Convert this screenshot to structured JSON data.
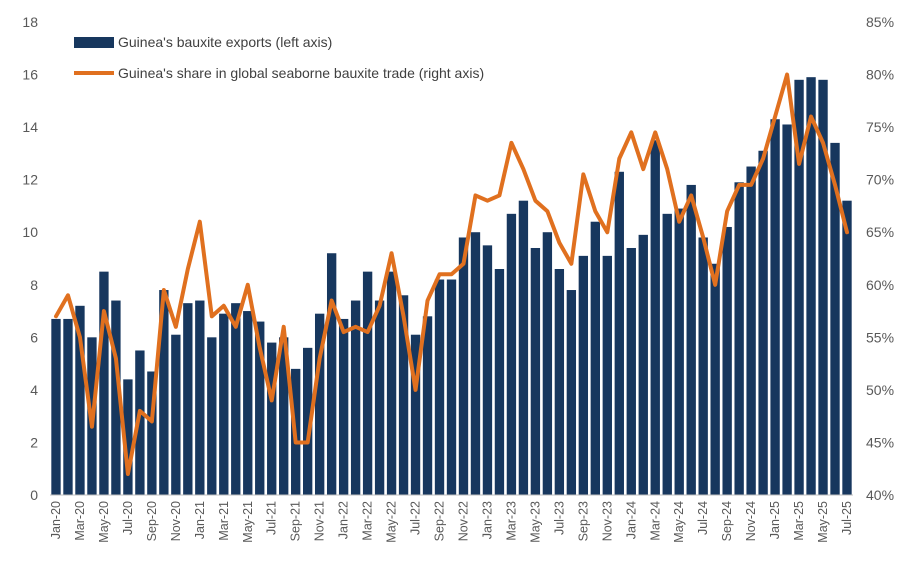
{
  "chart_data": {
    "type": "bar+line",
    "categories": [
      "Jan-20",
      "Feb-20",
      "Mar-20",
      "Apr-20",
      "May-20",
      "Jun-20",
      "Jul-20",
      "Aug-20",
      "Sep-20",
      "Oct-20",
      "Nov-20",
      "Dec-20",
      "Jan-21",
      "Feb-21",
      "Mar-21",
      "Apr-21",
      "May-21",
      "Jun-21",
      "Jul-21",
      "Aug-21",
      "Sep-21",
      "Oct-21",
      "Nov-21",
      "Dec-21",
      "Jan-22",
      "Feb-22",
      "Mar-22",
      "Apr-22",
      "May-22",
      "Jun-22",
      "Jul-22",
      "Aug-22",
      "Sep-22",
      "Oct-22",
      "Nov-22",
      "Dec-22",
      "Jan-23",
      "Feb-23",
      "Mar-23",
      "Apr-23",
      "May-23",
      "Jun-23",
      "Jul-23",
      "Aug-23",
      "Sep-23",
      "Oct-23",
      "Nov-23",
      "Dec-23",
      "Jan-24",
      "Feb-24",
      "Mar-24",
      "Apr-24",
      "May-24",
      "Jun-24",
      "Jul-24",
      "Aug-24",
      "Sep-24",
      "Oct-24",
      "Nov-24",
      "Dec-24",
      "Jan-25",
      "Feb-25",
      "Mar-25",
      "Apr-25",
      "May-25",
      "Jun-25",
      "Jul-25"
    ],
    "tick_labels": [
      "Jan-20",
      "Mar-20",
      "May-20",
      "Jul-20",
      "Sep-20",
      "Nov-20",
      "Jan-21",
      "Mar-21",
      "May-21",
      "Jul-21",
      "Sep-21",
      "Nov-21",
      "Jan-22",
      "Mar-22",
      "May-22",
      "Jul-22",
      "Sep-22",
      "Nov-22",
      "Jan-23",
      "Mar-23",
      "May-23",
      "Jul-23",
      "Sep-23",
      "Nov-23",
      "Jan-24",
      "Mar-24",
      "May-24",
      "Jul-24",
      "Sep-24",
      "Nov-24",
      "Jan-25",
      "Mar-25",
      "May-25",
      "Jul-25"
    ],
    "series": [
      {
        "name": "Guinea's bauxite exports (left axis)",
        "type": "bar",
        "axis": "left",
        "color": "#17375e",
        "values": [
          6.7,
          6.7,
          7.2,
          6.0,
          8.5,
          7.4,
          4.4,
          5.5,
          4.7,
          7.8,
          6.1,
          7.3,
          7.4,
          6.0,
          6.9,
          7.3,
          7.0,
          6.6,
          5.8,
          6.0,
          4.8,
          5.6,
          6.9,
          9.2,
          6.7,
          7.4,
          8.5,
          7.4,
          8.5,
          7.6,
          6.1,
          6.8,
          8.2,
          8.2,
          9.8,
          10.0,
          9.5,
          8.6,
          10.7,
          11.2,
          9.4,
          10.0,
          8.6,
          7.8,
          9.1,
          10.4,
          9.1,
          12.3,
          9.4,
          9.9,
          13.5,
          10.7,
          10.9,
          11.8,
          9.8,
          8.8,
          10.2,
          11.9,
          12.5,
          13.1,
          14.3,
          14.1,
          15.8,
          15.9,
          15.8,
          13.4,
          11.2
        ]
      },
      {
        "name": "Guinea's share in global seaborne bauxite trade (right axis)",
        "type": "line",
        "axis": "right",
        "color": "#e0701f",
        "values": [
          57,
          59,
          55,
          46.5,
          57.5,
          53,
          42,
          48,
          47,
          59.5,
          56,
          61.5,
          66,
          57,
          58,
          56,
          60,
          54,
          49,
          56,
          45,
          45,
          53,
          58.5,
          55.5,
          56,
          55.5,
          58,
          63,
          57,
          50,
          58.5,
          61,
          61,
          62,
          68.5,
          68,
          68.5,
          73.5,
          71,
          68,
          67,
          64,
          62,
          70.5,
          67,
          65,
          72,
          74.5,
          71,
          74.5,
          71,
          66,
          68.5,
          64.5,
          60,
          67,
          69.5,
          69.5,
          72,
          76,
          80,
          71.5,
          76,
          73.5,
          69.5,
          65
        ]
      }
    ],
    "y_left": {
      "min": 0,
      "max": 18,
      "ticks": [
        0,
        2,
        4,
        6,
        8,
        10,
        12,
        14,
        16,
        18
      ],
      "tick_labels": [
        "0",
        "2",
        "4",
        "6",
        "8",
        "10",
        "12",
        "14",
        "16",
        "18"
      ]
    },
    "y_right": {
      "min": 40,
      "max": 85,
      "ticks": [
        40,
        45,
        50,
        55,
        60,
        65,
        70,
        75,
        80,
        85
      ],
      "tick_labels": [
        "40%",
        "45%",
        "50%",
        "55%",
        "60%",
        "65%",
        "70%",
        "75%",
        "80%",
        "85%"
      ]
    },
    "legend": {
      "position": "top-left",
      "entries": [
        {
          "label": "Guinea's bauxite exports (left axis)",
          "marker": "bar",
          "color": "#17375e"
        },
        {
          "label": "Guinea's share in global seaborne bauxite trade (right axis)",
          "marker": "line",
          "color": "#e0701f"
        }
      ]
    },
    "grid": false,
    "title": "",
    "xlabel": "",
    "ylabel": ""
  }
}
